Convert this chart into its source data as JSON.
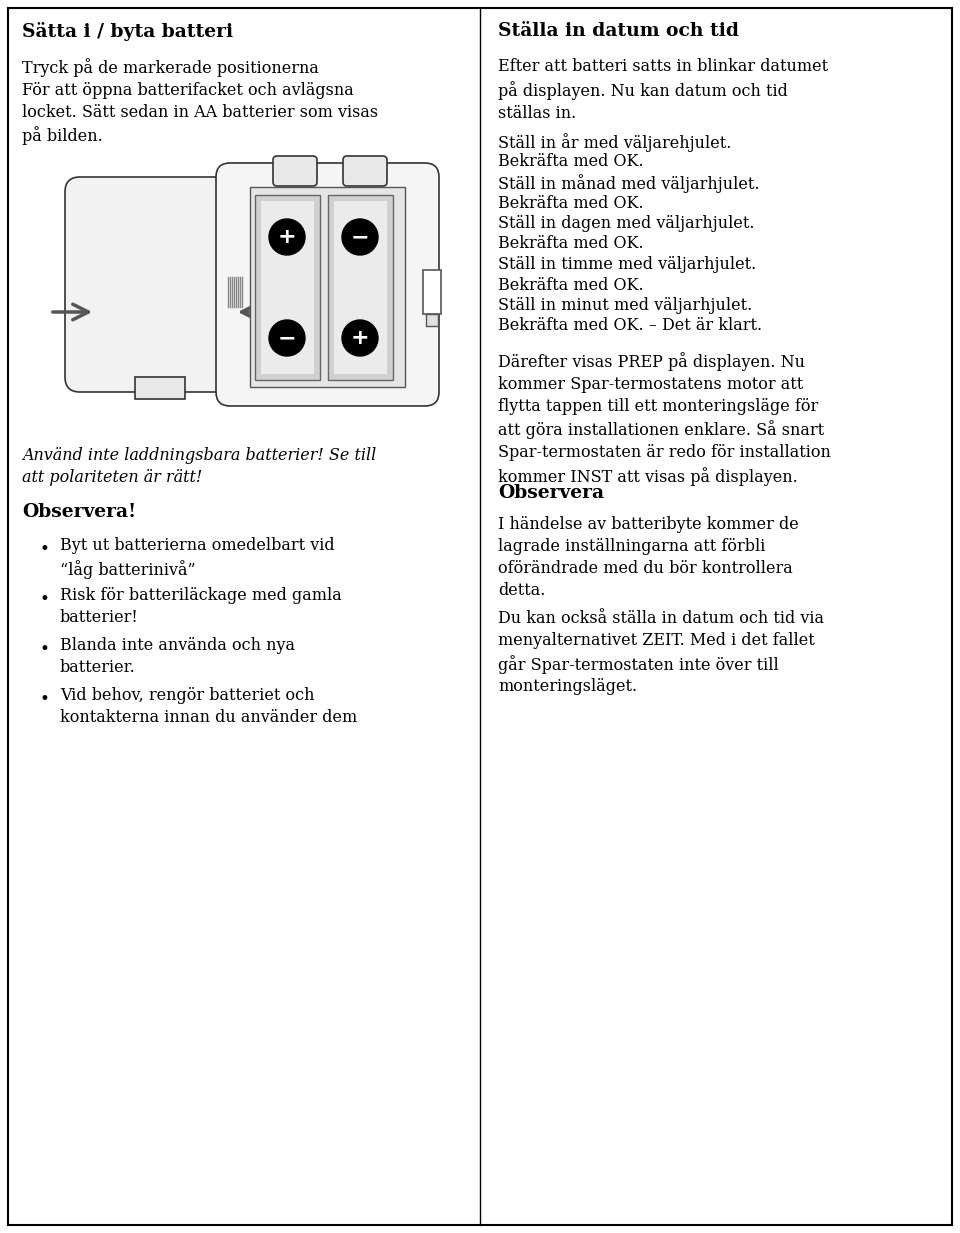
{
  "bg_color": "#ffffff",
  "border_color": "#000000",
  "left_col": {
    "title": "Sätta i / byta batteri",
    "para1": "Tryck på de markerade positionerna\nFör att öppna batterifacket och avlägsna\nlocket. Sätt sedan in AA batterier som visas\npå bilden.",
    "italic_warning": "Använd inte laddningsbara batterier! Se till\natt polariteten är rätt!",
    "observera_title": "Observera!",
    "bullets": [
      "Byt ut batterierna omedelbart vid\n“låg batterinivå”",
      "Risk för batteriläckage med gamla\nbatterier!",
      "Blanda inte använda och nya\nbatterier.",
      "Vid behov, rengör batteriet och\nkontakterna innan du använder dem"
    ]
  },
  "right_col": {
    "title": "Ställa in datum och tid",
    "para1": "Efter att batteri satts in blinkar datumet\npå displayen. Nu kan datum och tid\nställas in.",
    "steps": [
      "Ställ in år med väljarehjulet.",
      "Bekräfta med OK.",
      "Ställ in månad med väljarhjulet.",
      "Bekräfta med OK.",
      "Ställ in dagen med väljarhjulet.",
      "Bekräfta med OK.",
      "Ställ in timme med väljarhjulet.",
      "Bekräfta med OK.",
      "Ställ in minut med väljarhjulet.",
      "Bekräfta med OK. – Det är klart."
    ],
    "para2": "Därefter visas PREP på displayen. Nu\nkommer Spar-termostatens motor att\nflytta tappen till ett monteringsläge för\natt göra installationen enklare. Så snart\nSpar-termostaten är redo för installation\nkommer INST att visas på displayen.",
    "observera_title": "Observera",
    "para3": "I händelse av batteribyte kommer de\nlagrade inställningarna att förbli\noförändrade med du bör kontrollera\ndetta.",
    "para4": "Du kan också ställa in datum och tid via\nmenyalternativet ZEIT. Med i det fallet\ngår Spar-termostaten inte över till\nmonteringsläget."
  }
}
